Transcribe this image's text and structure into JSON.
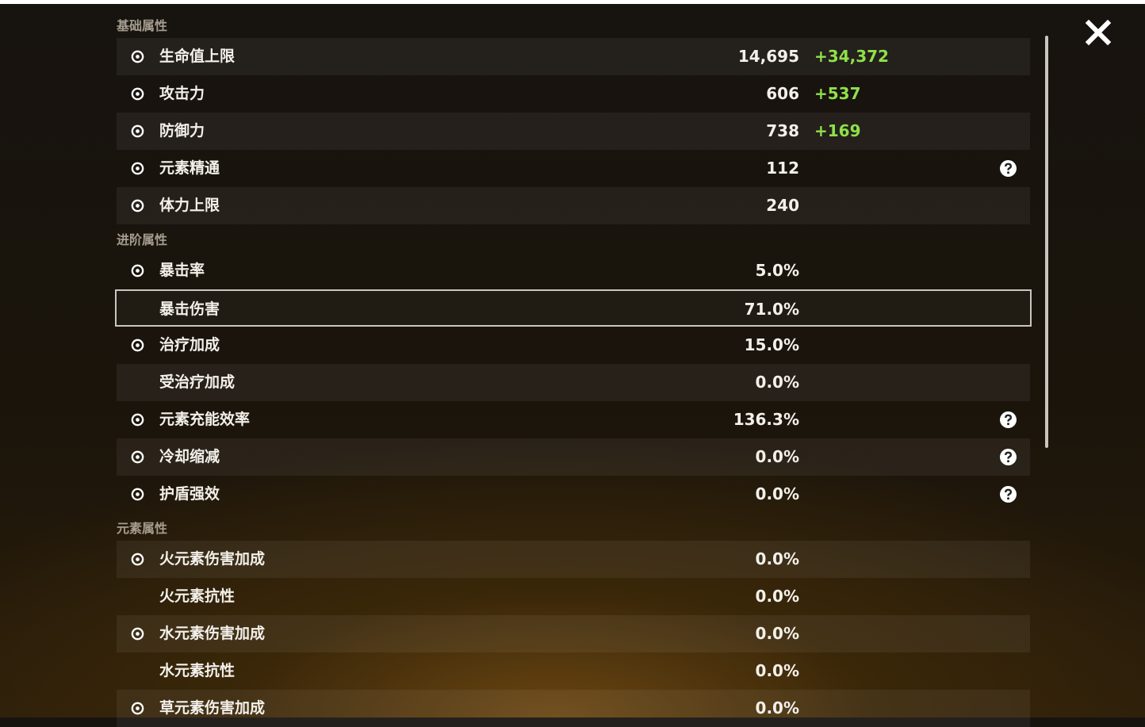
{
  "sections": [
    {
      "title": "基础属性",
      "rows": [
        {
          "label": "生命值上限",
          "value": "14,695",
          "bonus": "+34,372"
        },
        {
          "label": "攻击力",
          "value": "606",
          "bonus": "+537"
        },
        {
          "label": "防御力",
          "value": "738",
          "bonus": "+169"
        },
        {
          "label": "元素精通",
          "value": "112",
          "help": true
        },
        {
          "label": "体力上限",
          "value": "240"
        }
      ]
    },
    {
      "title": "进阶属性",
      "rows": [
        {
          "label": "暴击率",
          "value": "5.0%"
        },
        {
          "label": "暴击伤害",
          "value": "71.0%",
          "selected": true
        },
        {
          "label": "治疗加成",
          "value": "15.0%"
        },
        {
          "label": "受治疗加成",
          "value": "0.0%"
        },
        {
          "label": "元素充能效率",
          "value": "136.3%",
          "help": true
        },
        {
          "label": "冷却缩减",
          "value": "0.0%",
          "help": true
        },
        {
          "label": "护盾强效",
          "value": "0.0%",
          "help": true
        }
      ]
    },
    {
      "title": "元素属性",
      "rows": [
        {
          "label": "火元素伤害加成",
          "value": "0.0%"
        },
        {
          "label": "火元素抗性",
          "value": "0.0%"
        },
        {
          "label": "水元素伤害加成",
          "value": "0.0%"
        },
        {
          "label": "水元素抗性",
          "value": "0.0%"
        },
        {
          "label": "草元素伤害加成",
          "value": "0.0%"
        }
      ]
    }
  ]
}
